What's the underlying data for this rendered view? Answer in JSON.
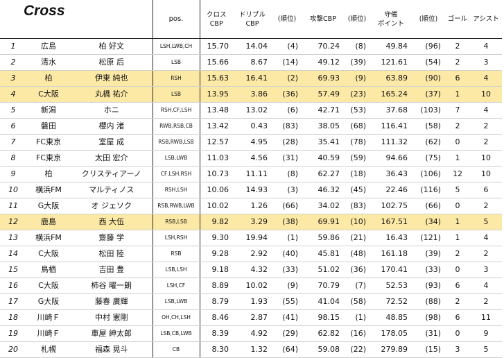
{
  "title": "Cross",
  "headers": {
    "pos": "pos.",
    "cross_cbp": [
      "クロス",
      "CBP"
    ],
    "dribble_cbp": [
      "ドリブル",
      "CBP"
    ],
    "rank1": "(順位)",
    "attack_cbp": "攻撃CBP",
    "rank2": "(順位)",
    "defense_points": [
      "守備",
      "ポイント"
    ],
    "rank3": "(順位)",
    "goals": "ゴール",
    "assists": "アシスト"
  },
  "rows": [
    {
      "rank": "1",
      "team": "広島",
      "name": "柏 好文",
      "pos": "LSH,LWB,CH",
      "cross": "15.70",
      "dribble": "14.04",
      "dr_rank": "(4)",
      "attack": "70.24",
      "at_rank": "(8)",
      "defense": "49.84",
      "df_rank": "(96)",
      "goals": "2",
      "assists": "4",
      "hl": false
    },
    {
      "rank": "2",
      "team": "清水",
      "name": "松原 后",
      "pos": "LSB",
      "cross": "15.66",
      "dribble": "8.67",
      "dr_rank": "(14)",
      "attack": "49.12",
      "at_rank": "(39)",
      "defense": "121.61",
      "df_rank": "(54)",
      "goals": "2",
      "assists": "3",
      "hl": false
    },
    {
      "rank": "3",
      "team": "柏",
      "name": "伊東 純也",
      "pos": "RSH",
      "cross": "15.63",
      "dribble": "16.41",
      "dr_rank": "(2)",
      "attack": "69.93",
      "at_rank": "(9)",
      "defense": "63.89",
      "df_rank": "(90)",
      "goals": "6",
      "assists": "4",
      "hl": true
    },
    {
      "rank": "4",
      "team": "C大阪",
      "name": "丸橋 祐介",
      "pos": "LSB",
      "cross": "13.95",
      "dribble": "3.86",
      "dr_rank": "(36)",
      "attack": "57.49",
      "at_rank": "(23)",
      "defense": "165.24",
      "df_rank": "(37)",
      "goals": "1",
      "assists": "10",
      "hl": true
    },
    {
      "rank": "5",
      "team": "新潟",
      "name": "ホニ",
      "pos": "RSH,CF,LSH",
      "cross": "13.48",
      "dribble": "13.02",
      "dr_rank": "(6)",
      "attack": "42.71",
      "at_rank": "(53)",
      "defense": "37.68",
      "df_rank": "(103)",
      "goals": "7",
      "assists": "4",
      "hl": false
    },
    {
      "rank": "6",
      "team": "磐田",
      "name": "櫻内 渚",
      "pos": "RWB,RSB,CB",
      "cross": "13.42",
      "dribble": "0.43",
      "dr_rank": "(83)",
      "attack": "38.05",
      "at_rank": "(68)",
      "defense": "116.41",
      "df_rank": "(58)",
      "goals": "2",
      "assists": "2",
      "hl": false
    },
    {
      "rank": "7",
      "team": "FC東京",
      "name": "室屋 成",
      "pos": "RSB,RWB,LSB",
      "cross": "12.57",
      "dribble": "4.95",
      "dr_rank": "(28)",
      "attack": "35.41",
      "at_rank": "(78)",
      "defense": "111.32",
      "df_rank": "(62)",
      "goals": "0",
      "assists": "2",
      "hl": false
    },
    {
      "rank": "8",
      "team": "FC東京",
      "name": "太田 宏介",
      "pos": "LSB,LWB",
      "cross": "11.03",
      "dribble": "4.56",
      "dr_rank": "(31)",
      "attack": "40.59",
      "at_rank": "(59)",
      "defense": "94.66",
      "df_rank": "(75)",
      "goals": "1",
      "assists": "10",
      "hl": false
    },
    {
      "rank": "9",
      "team": "柏",
      "name": "クリスティアーノ",
      "pos": "CF,LSH,RSH",
      "cross": "10.73",
      "dribble": "11.11",
      "dr_rank": "(8)",
      "attack": "62.27",
      "at_rank": "(18)",
      "defense": "36.43",
      "df_rank": "(106)",
      "goals": "12",
      "assists": "10",
      "hl": false
    },
    {
      "rank": "10",
      "team": "横浜FM",
      "name": "マルティノス",
      "pos": "RSH,LSH",
      "cross": "10.06",
      "dribble": "14.93",
      "dr_rank": "(3)",
      "attack": "46.32",
      "at_rank": "(45)",
      "defense": "22.46",
      "df_rank": "(116)",
      "goals": "5",
      "assists": "6",
      "hl": false
    },
    {
      "rank": "11",
      "team": "G大阪",
      "name": "オ ジェソク",
      "pos": "RSB,RWB,LWB",
      "cross": "10.02",
      "dribble": "1.26",
      "dr_rank": "(66)",
      "attack": "34.02",
      "at_rank": "(83)",
      "defense": "102.75",
      "df_rank": "(66)",
      "goals": "0",
      "assists": "2",
      "hl": false
    },
    {
      "rank": "12",
      "team": "鹿島",
      "name": "西 大伍",
      "pos": "RSB,LSB",
      "cross": "9.82",
      "dribble": "3.29",
      "dr_rank": "(38)",
      "attack": "69.91",
      "at_rank": "(10)",
      "defense": "167.51",
      "df_rank": "(34)",
      "goals": "1",
      "assists": "5",
      "hl": true
    },
    {
      "rank": "13",
      "team": "横浜FM",
      "name": "齋藤 学",
      "pos": "LSH,RSH",
      "cross": "9.30",
      "dribble": "19.94",
      "dr_rank": "(1)",
      "attack": "59.86",
      "at_rank": "(21)",
      "defense": "16.43",
      "df_rank": "(121)",
      "goals": "1",
      "assists": "4",
      "hl": false
    },
    {
      "rank": "14",
      "team": "C大阪",
      "name": "松田 陸",
      "pos": "RSB",
      "cross": "9.28",
      "dribble": "2.92",
      "dr_rank": "(40)",
      "attack": "45.81",
      "at_rank": "(48)",
      "defense": "161.18",
      "df_rank": "(39)",
      "goals": "2",
      "assists": "2",
      "hl": false
    },
    {
      "rank": "15",
      "team": "鳥栖",
      "name": "吉田 豊",
      "pos": "LSB,LSH",
      "cross": "9.18",
      "dribble": "4.32",
      "dr_rank": "(33)",
      "attack": "51.02",
      "at_rank": "(36)",
      "defense": "170.41",
      "df_rank": "(33)",
      "goals": "0",
      "assists": "3",
      "hl": false
    },
    {
      "rank": "16",
      "team": "C大阪",
      "name": "柿谷 曜一朗",
      "pos": "LSH,CF",
      "cross": "8.89",
      "dribble": "10.02",
      "dr_rank": "(9)",
      "attack": "70.79",
      "at_rank": "(7)",
      "defense": "52.53",
      "df_rank": "(93)",
      "goals": "6",
      "assists": "4",
      "hl": false
    },
    {
      "rank": "17",
      "team": "G大阪",
      "name": "藤春 廣輝",
      "pos": "LSB,LWB",
      "cross": "8.79",
      "dribble": "1.93",
      "dr_rank": "(55)",
      "attack": "41.04",
      "at_rank": "(58)",
      "defense": "72.52",
      "df_rank": "(88)",
      "goals": "2",
      "assists": "2",
      "hl": false
    },
    {
      "rank": "18",
      "team": "川崎Ｆ",
      "name": "中村 憲剛",
      "pos": "OH,CH,LSH",
      "cross": "8.46",
      "dribble": "2.87",
      "dr_rank": "(41)",
      "attack": "98.15",
      "at_rank": "(1)",
      "defense": "48.85",
      "df_rank": "(98)",
      "goals": "6",
      "assists": "11",
      "hl": false
    },
    {
      "rank": "19",
      "team": "川崎Ｆ",
      "name": "車屋 紳太郎",
      "pos": "LSB,CB,LWB",
      "cross": "8.39",
      "dribble": "4.92",
      "dr_rank": "(29)",
      "attack": "62.82",
      "at_rank": "(16)",
      "defense": "178.05",
      "df_rank": "(31)",
      "goals": "0",
      "assists": "9",
      "hl": false
    },
    {
      "rank": "20",
      "team": "札幌",
      "name": "福森 晃斗",
      "pos": "CB",
      "cross": "8.30",
      "dribble": "1.32",
      "dr_rank": "(64)",
      "attack": "59.08",
      "at_rank": "(22)",
      "defense": "279.89",
      "df_rank": "(15)",
      "goals": "3",
      "assists": "5",
      "hl": false
    }
  ]
}
